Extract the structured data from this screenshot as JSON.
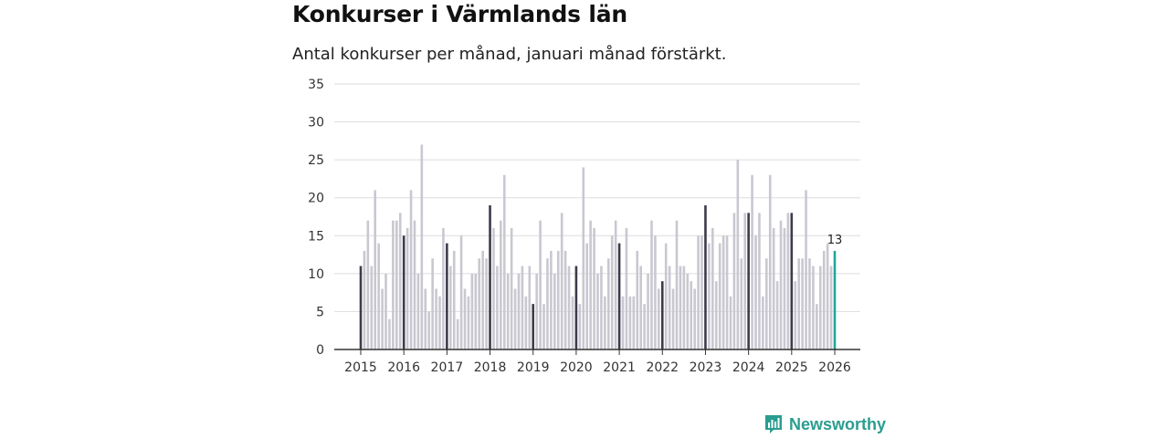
{
  "header": {
    "title": "Konkurser i Värmlands län",
    "subtitle": "Antal konkurser per månad, januari månad förstärkt."
  },
  "brand": {
    "name": "Newsworthy",
    "icon": "bar-chart-logo-icon"
  },
  "colors": {
    "bar": "#c9c8d1",
    "january": "#3d3b4a",
    "latest": "#1fa79b",
    "grid": "#dddddd",
    "axis": "#333333"
  },
  "chart_data": {
    "type": "bar",
    "title": "Konkurser i Värmlands län",
    "subtitle": "Antal konkurser per månad, januari månad förstärkt.",
    "xlabel": "",
    "ylabel": "",
    "ylim": [
      0,
      35
    ],
    "yticks": [
      0,
      5,
      10,
      15,
      20,
      25,
      30,
      35
    ],
    "xtick_labels": [
      "2015",
      "2016",
      "2017",
      "2018",
      "2019",
      "2020",
      "2021",
      "2022",
      "2023",
      "2024",
      "2025",
      "2026"
    ],
    "grid": true,
    "start": "2015-01",
    "highlight": "January bars darker; latest month (2026-01) in teal with value label",
    "latest_label": "13",
    "series": [
      {
        "year": "2015",
        "values": [
          11,
          13,
          17,
          11,
          21,
          14,
          8,
          10,
          4,
          17,
          17,
          18
        ]
      },
      {
        "year": "2016",
        "values": [
          15,
          16,
          21,
          17,
          10,
          27,
          8,
          5,
          12,
          8,
          7,
          16
        ]
      },
      {
        "year": "2017",
        "values": [
          14,
          11,
          13,
          4,
          15,
          8,
          7,
          10,
          10,
          12,
          13,
          12
        ]
      },
      {
        "year": "2018",
        "values": [
          19,
          16,
          11,
          17,
          23,
          10,
          16,
          8,
          10,
          11,
          7,
          11
        ]
      },
      {
        "year": "2019",
        "values": [
          6,
          10,
          17,
          6,
          12,
          13,
          10,
          13,
          18,
          13,
          11,
          7
        ]
      },
      {
        "year": "2020",
        "values": [
          11,
          6,
          24,
          14,
          17,
          16,
          10,
          11,
          7,
          12,
          15,
          17
        ]
      },
      {
        "year": "2021",
        "values": [
          14,
          7,
          16,
          7,
          7,
          13,
          11,
          6,
          10,
          17,
          15,
          8
        ]
      },
      {
        "year": "2022",
        "values": [
          9,
          14,
          11,
          8,
          17,
          11,
          11,
          10,
          9,
          8,
          15,
          15
        ]
      },
      {
        "year": "2023",
        "values": [
          19,
          14,
          16,
          9,
          14,
          15,
          15,
          7,
          18,
          25,
          12,
          18
        ]
      },
      {
        "year": "2024",
        "values": [
          18,
          23,
          15,
          18,
          7,
          12,
          23,
          16,
          9,
          17,
          16,
          18
        ]
      },
      {
        "year": "2025",
        "values": [
          18,
          9,
          12,
          12,
          21,
          12,
          11,
          6,
          11,
          13,
          14,
          11
        ]
      },
      {
        "year": "2026",
        "values": [
          13
        ]
      }
    ]
  }
}
